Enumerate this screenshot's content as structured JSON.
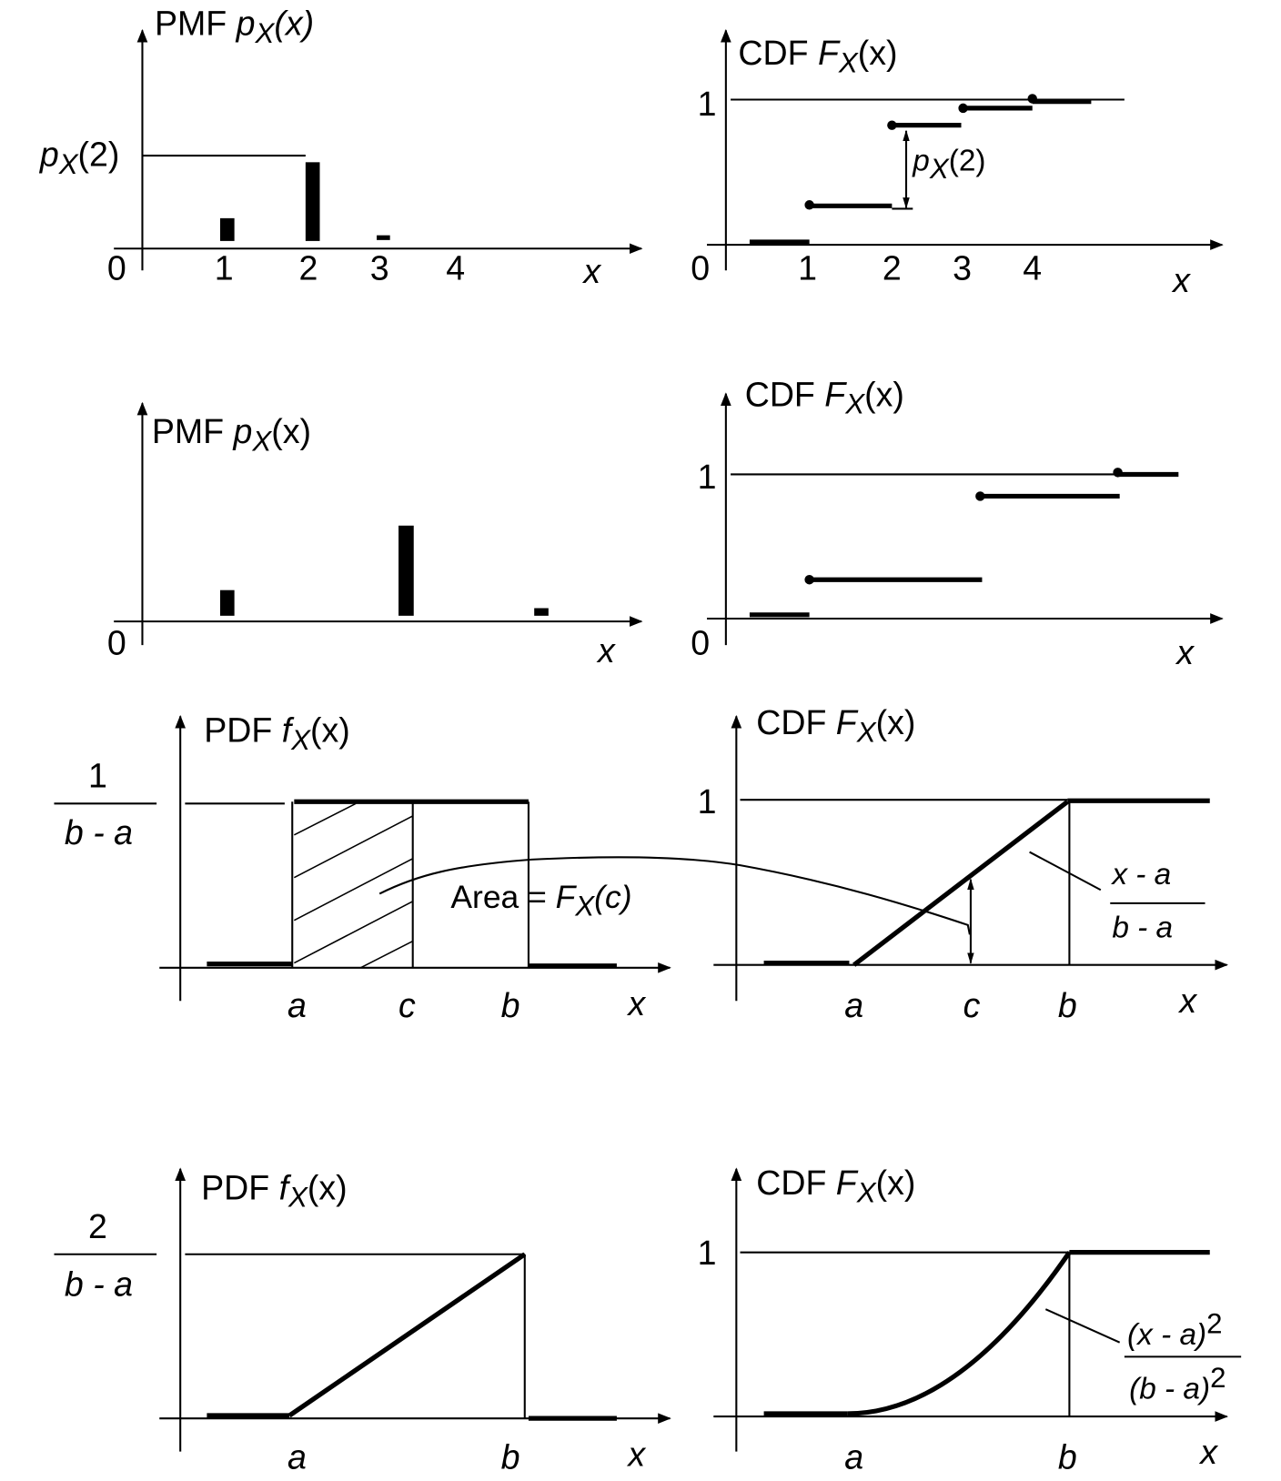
{
  "pmf_title": {
    "name": "PMF",
    "fn": "p",
    "sub": "X",
    "arg": "(x)"
  },
  "cdf_title": {
    "name": "CDF",
    "fn": "F",
    "sub": "X",
    "arg": "(x)"
  },
  "pdf_title": {
    "name": "PDF",
    "fn": "f",
    "sub": "X",
    "arg": "(x)"
  },
  "pmf_marker": {
    "fn": "p",
    "sub": "X",
    "arg": "(2)"
  },
  "axis_var": "x",
  "zero": "0",
  "one": "1",
  "ticks_integer": [
    "1",
    "2",
    "3",
    "4"
  ],
  "ticks_uniform": [
    "a",
    "c",
    "b"
  ],
  "ticks_triangle": [
    "a",
    "b"
  ],
  "uniform_height": {
    "num": "1",
    "den": "b - a"
  },
  "triangle_height": {
    "num": "2",
    "den": "b - a"
  },
  "area_label": {
    "text": "Area = ",
    "fn": "F",
    "sub": "X",
    "arg": "(c)"
  },
  "uniform_cdf_formula": {
    "num": "x - a",
    "den": "b - a"
  },
  "triangle_cdf_formula": {
    "num": "(x - a)",
    "num_exp": "2",
    "den": "(b - a)",
    "den_exp": "2"
  },
  "discrete_pmf_example_1": {
    "x": [
      1,
      2,
      3
    ],
    "p_relative": [
      0.29,
      1.0,
      0.06
    ]
  },
  "discrete_pmf_example_2": {
    "p_relative": [
      0.29,
      1.0,
      0.12
    ]
  }
}
